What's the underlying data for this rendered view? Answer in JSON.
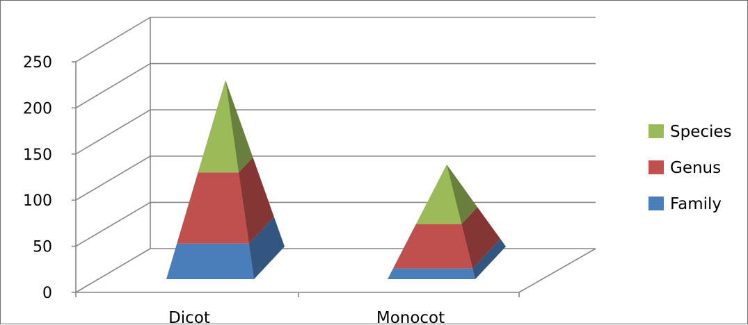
{
  "chart_data": {
    "type": "bar",
    "subtype": "3d-stacked-pyramid",
    "categories": [
      "Dicot",
      "Monocot"
    ],
    "series": [
      {
        "name": "Family",
        "values": [
          40,
          12
        ],
        "color": "#4a7ebb"
      },
      {
        "name": "Genus",
        "values": [
          80,
          50
        ],
        "color": "#c0504d"
      },
      {
        "name": "Species",
        "values": [
          104,
          67
        ],
        "color": "#9bbb59"
      }
    ],
    "y_ticks": [
      "0",
      "50",
      "100",
      "150",
      "200",
      "250"
    ],
    "ylim": [
      0,
      250
    ],
    "grid": true,
    "legend_position": "right",
    "title": "",
    "xlabel": "",
    "ylabel": ""
  }
}
